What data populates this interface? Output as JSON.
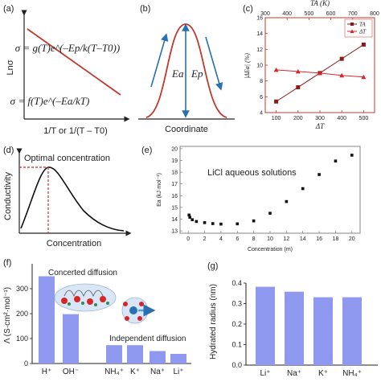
{
  "panels": {
    "a": {
      "label": "(a)",
      "ylabel": "Lnσ",
      "xlabel": "1/T or 1/(T – T0)",
      "eq_top": "σ = g(T)e^(–Ep/k(T–T0))",
      "eq_bottom": "σ = f(T)e^(–Ea/kT)",
      "line_color": "#c0392b"
    },
    "b": {
      "label": "(b)",
      "xlabel": "Coordinate",
      "ea_label": "Ea",
      "ep_label": "Ep",
      "curve_color": "#c0392b",
      "arrow_color": "#2a6fb0"
    },
    "c": {
      "label": "(c)"
    },
    "d": {
      "label": "(d)",
      "ylabel": "Conductivity",
      "xlabel": "Concentration",
      "annotation": "Optimal concentration",
      "guide_color": "#d62728"
    },
    "e": {
      "label": "(e)",
      "annotation": "LiCl aqueous solutions"
    },
    "f": {
      "label": "(f)",
      "concerted_label": "Concerted diffusion",
      "independent_label": "Independent diffusion"
    },
    "g": {
      "label": "(g)"
    }
  },
  "chart_data": [
    {
      "id": "c",
      "type": "line",
      "x": [
        100,
        200,
        300,
        400,
        500
      ],
      "xlabel": "ΔT",
      "top_xlabel": "TA (K)",
      "top_xlim": [
        300,
        800
      ],
      "top_ticks": [
        300,
        400,
        500,
        600,
        700,
        800
      ],
      "ylabel": "|ΔEa| (%)",
      "xlim": [
        50,
        550
      ],
      "ylim": [
        4,
        16
      ],
      "yticks": [
        4,
        6,
        8,
        10,
        12,
        14,
        16
      ],
      "xticks": [
        100,
        200,
        300,
        400,
        500
      ],
      "series": [
        {
          "name": "TA",
          "color": "#8b1a1a",
          "marker": "square",
          "values": [
            5.4,
            7.2,
            9.0,
            10.8,
            12.6
          ]
        },
        {
          "name": "ΔT",
          "color": "#d62728",
          "marker": "triangle",
          "values": [
            9.4,
            9.2,
            9.0,
            8.7,
            8.5
          ]
        }
      ],
      "legend": "top-right"
    },
    {
      "id": "e",
      "type": "scatter",
      "xlabel": "Concentration (m)",
      "ylabel": "Ea (kJ·mol⁻¹)",
      "xlim": [
        -1,
        21
      ],
      "ylim": [
        12.8,
        20.2
      ],
      "xticks": [
        0,
        2,
        4,
        6,
        8,
        10,
        12,
        14,
        16,
        18,
        20
      ],
      "yticks": [
        13,
        14,
        15,
        16,
        17,
        18,
        19,
        20
      ],
      "x": [
        0.1,
        0.2,
        0.5,
        1,
        2,
        3,
        4,
        6,
        8,
        10,
        12,
        14,
        16,
        18,
        20
      ],
      "values": [
        14.35,
        14.15,
        13.95,
        13.8,
        13.7,
        13.62,
        13.58,
        13.6,
        13.85,
        14.5,
        15.5,
        16.6,
        17.8,
        18.95,
        19.45
      ],
      "color": "#111111"
    },
    {
      "id": "f",
      "type": "bar",
      "categories": [
        "H⁺",
        "OH⁻",
        "NH₄⁺",
        "K⁺",
        "Na⁺",
        "Li⁺"
      ],
      "values": [
        350,
        198,
        73.5,
        73.5,
        50.1,
        38.7
      ],
      "ylabel": "Λ (S·cm²·mol⁻¹)",
      "ylim": [
        0,
        400
      ],
      "yticks": [
        0,
        100,
        200,
        300
      ],
      "color": "#8f99f0"
    },
    {
      "id": "g",
      "type": "bar",
      "categories": [
        "Li⁺",
        "Na⁺",
        "K⁺",
        "NH₄⁺"
      ],
      "values": [
        0.382,
        0.358,
        0.331,
        0.331
      ],
      "ylabel": "Hydrated radius (nm)",
      "ylim": [
        0,
        0.4
      ],
      "yticks": [
        0.0,
        0.1,
        0.2,
        0.3,
        0.4
      ],
      "color": "#8f99f0"
    }
  ]
}
